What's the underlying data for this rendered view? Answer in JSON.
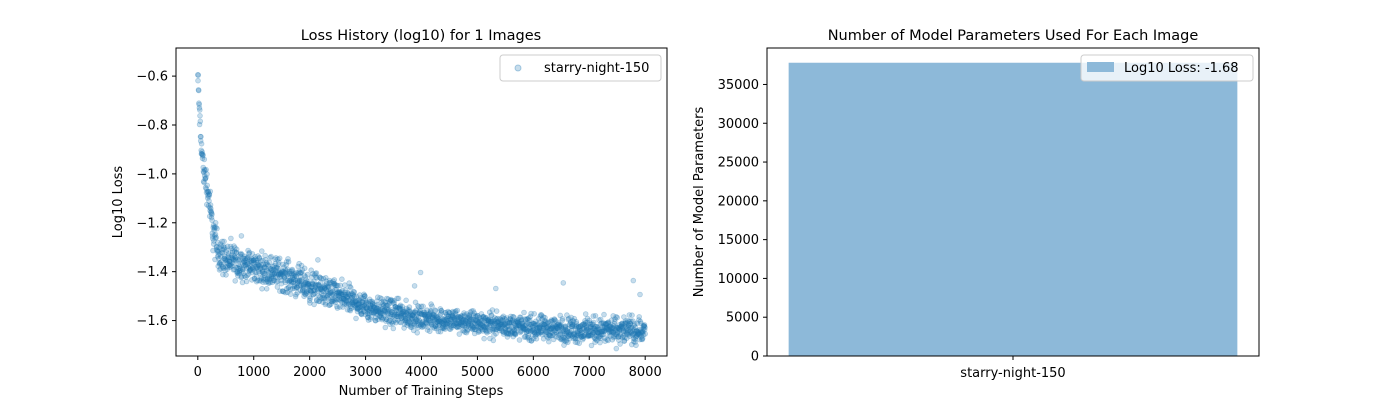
{
  "chart_data": [
    {
      "type": "scatter",
      "title": "Loss History (log10) for 1 Images",
      "xlabel": "Number of Training Steps",
      "ylabel": "Log10 Loss",
      "xlim": [
        -390,
        8390
      ],
      "ylim": [
        -1.745,
        -0.485
      ],
      "xticks": [
        0,
        1000,
        2000,
        3000,
        4000,
        5000,
        6000,
        7000,
        8000
      ],
      "yticks": [
        -1.6,
        -1.4,
        -1.2,
        -1.0,
        -0.8,
        -0.6
      ],
      "grid": false,
      "legend_position": "upper-right",
      "series": [
        {
          "name": "starry-night-150",
          "color": "#1f77b4",
          "alpha": 0.25,
          "n_points": 8000,
          "trend": [
            [
              0,
              -0.6
            ],
            [
              50,
              -0.85
            ],
            [
              100,
              -0.98
            ],
            [
              150,
              -1.03
            ],
            [
              200,
              -1.1
            ],
            [
              250,
              -1.2
            ],
            [
              300,
              -1.27
            ],
            [
              400,
              -1.33
            ],
            [
              600,
              -1.36
            ],
            [
              1000,
              -1.38
            ],
            [
              1500,
              -1.41
            ],
            [
              2000,
              -1.46
            ],
            [
              2500,
              -1.5
            ],
            [
              3000,
              -1.54
            ],
            [
              3500,
              -1.57
            ],
            [
              4000,
              -1.59
            ],
            [
              5000,
              -1.61
            ],
            [
              6000,
              -1.63
            ],
            [
              7000,
              -1.64
            ],
            [
              8000,
              -1.64
            ]
          ],
          "spread": [
            [
              0,
              0.04
            ],
            [
              300,
              0.06
            ],
            [
              500,
              0.05
            ],
            [
              1000,
              0.045
            ],
            [
              2000,
              0.045
            ],
            [
              4000,
              0.035
            ],
            [
              6000,
              0.035
            ],
            [
              8000,
              0.04
            ]
          ]
        }
      ]
    },
    {
      "type": "bar",
      "title": "Number of Model Parameters Used For Each Image",
      "xlabel": "",
      "ylabel": "Number of Model Parameters",
      "categories": [
        "starry-night-150"
      ],
      "values": [
        37800
      ],
      "ylim": [
        0,
        39700
      ],
      "yticks": [
        0,
        5000,
        10000,
        15000,
        20000,
        25000,
        30000,
        35000
      ],
      "grid": false,
      "legend_position": "upper-right",
      "series": [
        {
          "name": "Log10 Loss: -1.68",
          "color": "#8db9d9"
        }
      ]
    }
  ]
}
